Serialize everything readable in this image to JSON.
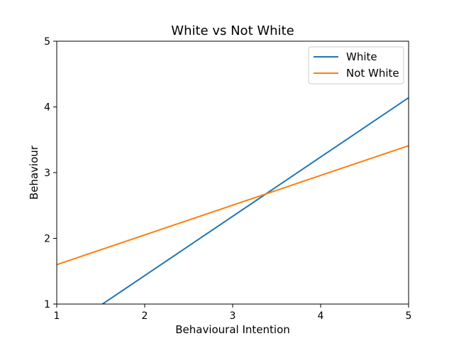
{
  "chart_data": {
    "type": "line",
    "title": "White vs Not White",
    "xlabel": "Behavioural Intention",
    "ylabel": "Behaviour",
    "xlim": [
      1,
      5
    ],
    "ylim": [
      1,
      5
    ],
    "xticks": [
      "1",
      "2",
      "3",
      "4",
      "5"
    ],
    "yticks": [
      "1",
      "2",
      "3",
      "4",
      "5"
    ],
    "grid": false,
    "legend_position": "top-right",
    "series": [
      {
        "name": "White",
        "color": "#1f77b4",
        "x": [
          1.52,
          5
        ],
        "y": [
          1.0,
          4.14
        ]
      },
      {
        "name": "Not White",
        "color": "#ff7f0e",
        "x": [
          1,
          5
        ],
        "y": [
          1.6,
          3.41
        ]
      }
    ]
  }
}
